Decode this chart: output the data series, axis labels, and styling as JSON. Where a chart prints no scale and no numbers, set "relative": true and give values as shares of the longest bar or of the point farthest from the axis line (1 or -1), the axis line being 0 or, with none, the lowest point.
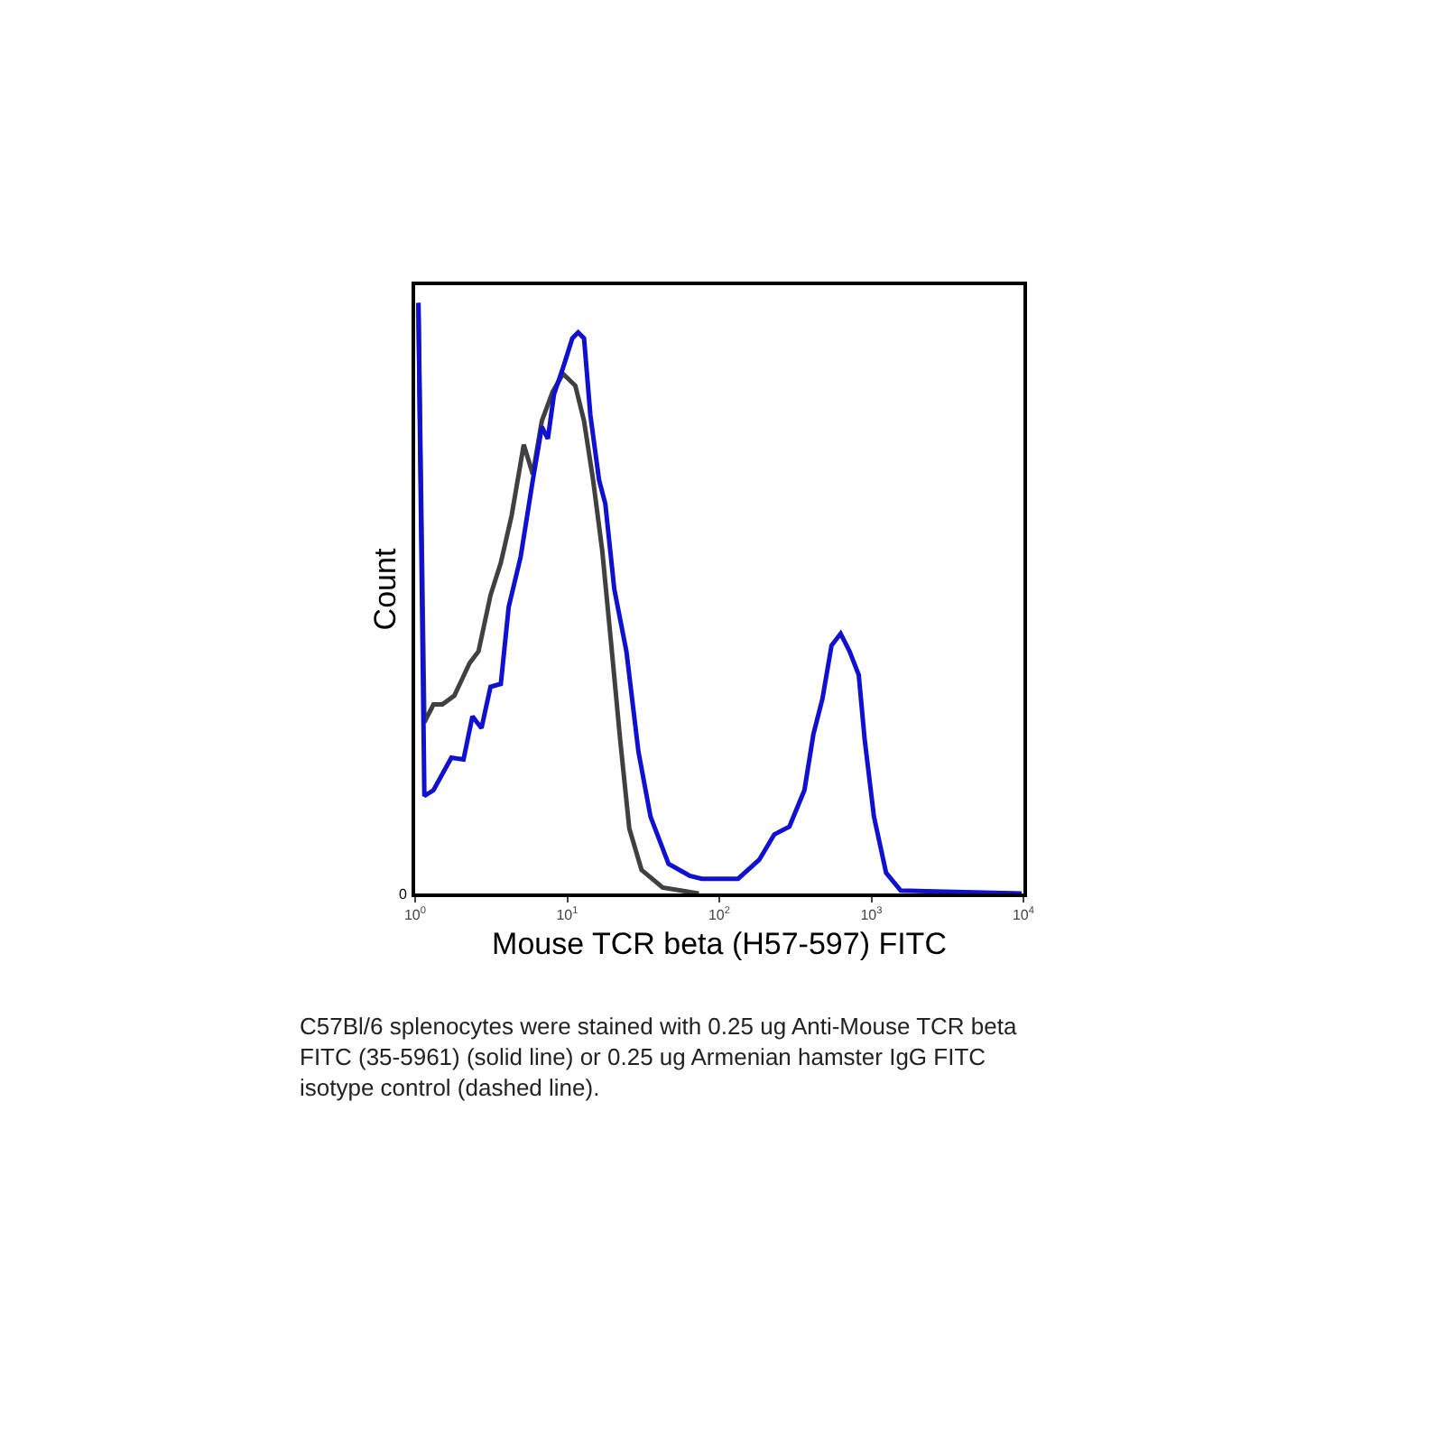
{
  "chart_data": {
    "type": "line",
    "relative": true,
    "xlabel": "Mouse TCR beta (H57-597) FITC",
    "ylabel": "Count",
    "log": "x",
    "grid": false,
    "marker": "none",
    "xlim": [
      1,
      10000
    ],
    "xticks": [
      {
        "value": 1,
        "label": "10$^{0}$"
      },
      {
        "value": 10,
        "label": "10$^{1}$"
      },
      {
        "value": 100,
        "label": "10$^{2}$"
      },
      {
        "value": 1000,
        "label": "10$^{3}$"
      },
      {
        "value": 10000,
        "label": "10$^{4}$"
      }
    ],
    "annotations": [
      "0",
      "C57Bl/6 splenocytes were stained with 0.25 ug Anti-Mouse TCR beta FITC (35-5961) (solid line) or 0.25 ug Armenian hamster IgG FITC isotype control (dashed line)."
    ],
    "series": [
      {
        "color": "#404040",
        "x": [
          1.05,
          1.15,
          1.32,
          1.51,
          1.81,
          2.28,
          2.61,
          3.13,
          3.66,
          4.31,
          5.18,
          5.94,
          6.81,
          8.03,
          9.38,
          11.3,
          12.9,
          14.8,
          17.0,
          19.5,
          22.3,
          25.6,
          30.8,
          42.4,
          73.3
        ],
        "values": [
          1.0,
          0.29,
          0.32,
          0.32,
          0.335,
          0.39,
          0.41,
          0.505,
          0.56,
          0.64,
          0.76,
          0.71,
          0.8,
          0.85,
          0.88,
          0.86,
          0.8,
          0.7,
          0.58,
          0.42,
          0.26,
          0.11,
          0.04,
          0.01,
          0.0
        ]
      },
      {
        "color": "#1010d0",
        "x": [
          1.05,
          1.15,
          1.32,
          1.73,
          2.08,
          2.38,
          2.73,
          3.13,
          3.66,
          4.12,
          4.94,
          5.94,
          6.81,
          7.46,
          8.18,
          9.38,
          10.8,
          11.8,
          12.9,
          14.2,
          16.2,
          17.8,
          20.4,
          24.5,
          29.4,
          35.3,
          46.4,
          63.9,
          76.7,
          133,
          183,
          230,
          289,
          363,
          416,
          477,
          547,
          628,
          719,
          826,
          904,
          1040,
          1250,
          1560,
          9730
        ],
        "values": [
          1.0,
          0.165,
          0.175,
          0.23,
          0.227,
          0.3,
          0.28,
          0.35,
          0.355,
          0.485,
          0.57,
          0.7,
          0.79,
          0.77,
          0.845,
          0.89,
          0.94,
          0.95,
          0.94,
          0.81,
          0.7,
          0.66,
          0.515,
          0.41,
          0.24,
          0.13,
          0.05,
          0.03,
          0.025,
          0.025,
          0.057,
          0.1,
          0.113,
          0.175,
          0.27,
          0.33,
          0.42,
          0.44,
          0.41,
          0.37,
          0.26,
          0.13,
          0.035,
          0.005,
          0.0
        ]
      }
    ]
  }
}
